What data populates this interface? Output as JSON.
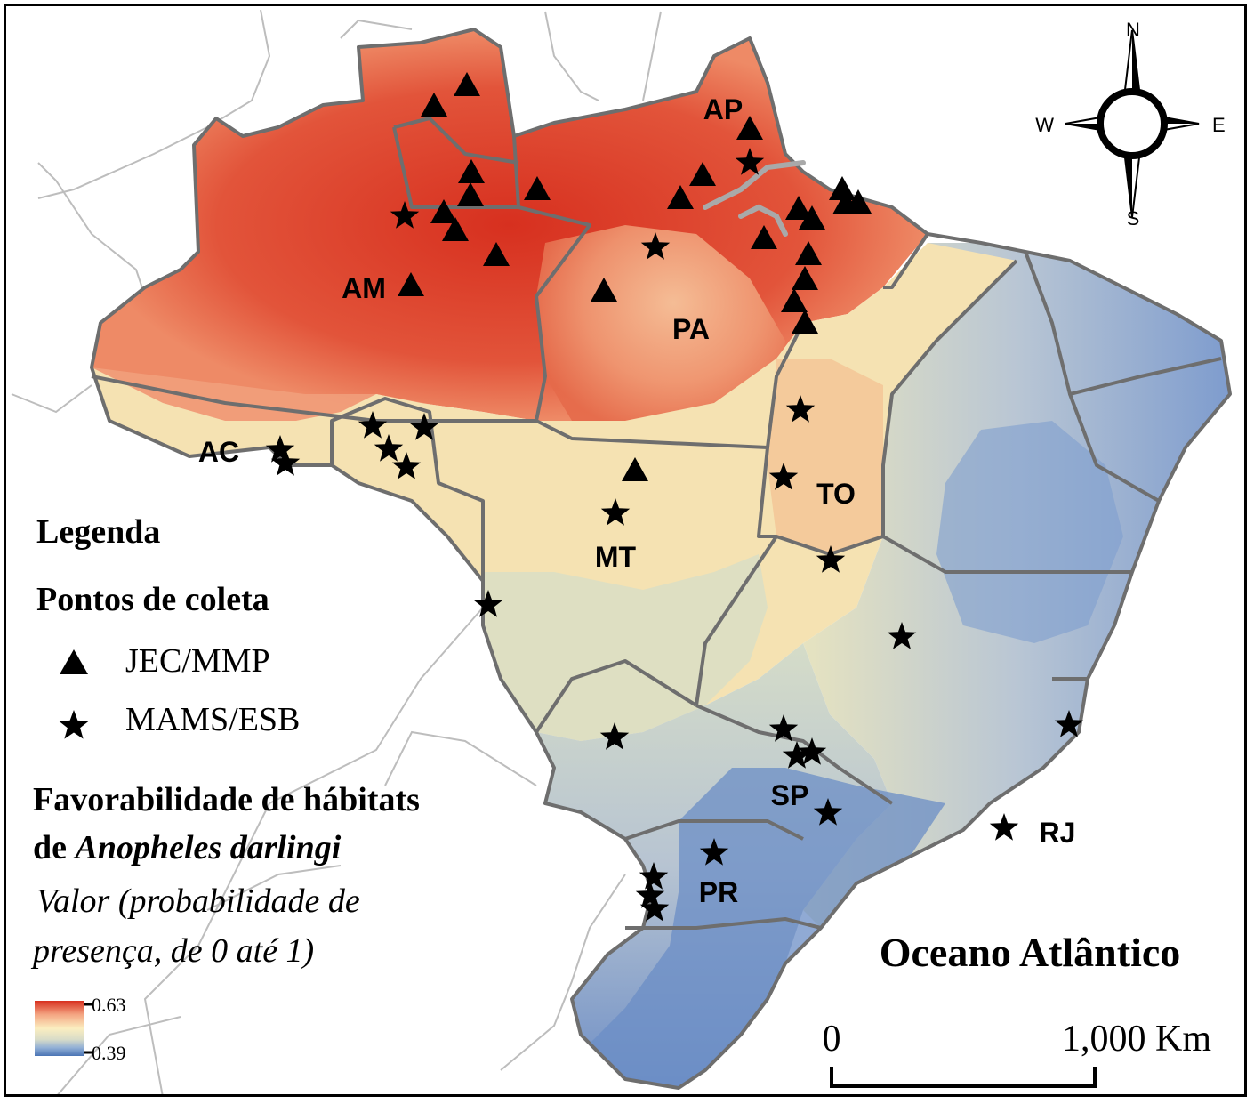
{
  "compass": {
    "north": "N",
    "south": "S",
    "east": "E",
    "west": "W",
    "icon": "compass-rose-icon"
  },
  "state_labels": [
    "AP",
    "AM",
    "PA",
    "AC",
    "TO",
    "MT",
    "SP",
    "RJ",
    "PR"
  ],
  "ocean_label": "Oceano Atlântico",
  "legend": {
    "title": "Legenda",
    "points_title": "Pontos de coleta",
    "triangle_label": "JEC/MMP",
    "star_label": "MAMS/ESB",
    "habitat_title_line1": "Favorabilidade de hábitats",
    "habitat_title_line2_prefix": "de",
    "habitat_species": "Anopheles darlingi",
    "value_line1": "Valor (probabilidade de",
    "value_line2": "presença, de 0 até 1)",
    "ramp_max": "0.63",
    "ramp_min": "0.39",
    "ramp_colors": [
      "#d7301f",
      "#f4a582",
      "#fbeec0",
      "#d8dcc8",
      "#92b0d6",
      "#4a74b4"
    ]
  },
  "scale_bar": {
    "start": "0",
    "end": "1,000 Km"
  },
  "colors": {
    "high": "#d7301f",
    "mid_high": "#f08a68",
    "mid": "#f7e6b0",
    "mid_low": "#c9d3c6",
    "low": "#6a8cc4",
    "border": "#6e6e6e",
    "neighbor_border": "#bdbdbd"
  }
}
